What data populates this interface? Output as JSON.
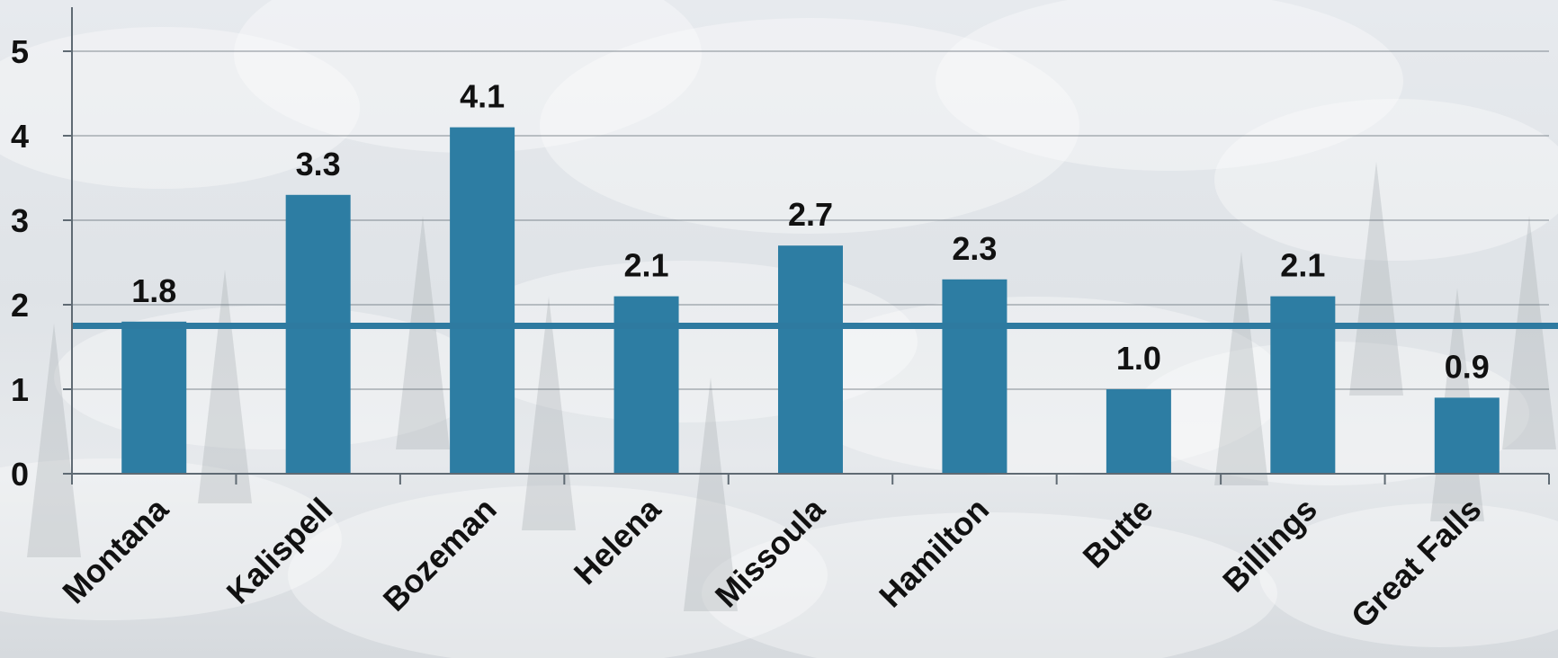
{
  "chart_data": {
    "type": "bar",
    "categories": [
      "Montana",
      "Kalispell",
      "Bozeman",
      "Helena",
      "Missoula",
      "Hamilton",
      "Butte",
      "Billings",
      "Great Falls"
    ],
    "values": [
      1.8,
      3.3,
      4.1,
      2.1,
      2.7,
      2.3,
      1.0,
      2.1,
      0.9
    ],
    "data_labels": [
      "1.8",
      "3.3",
      "4.1",
      "2.1",
      "2.7",
      "2.3",
      "1.0",
      "2.1",
      "0.9"
    ],
    "reference_line": {
      "value": 1.75
    },
    "ylim": [
      0,
      5.5
    ],
    "y_ticks": [
      "0",
      "1",
      "2",
      "3",
      "4",
      "5"
    ],
    "title": "",
    "xlabel": "",
    "ylabel": "",
    "grid": true,
    "legend": "none",
    "colors": {
      "bar": "#2d7da3",
      "reference_line": "#2e7aa0",
      "grid": "#5f6a73",
      "text": "#111111"
    },
    "background": "snowy-forest-photo"
  }
}
